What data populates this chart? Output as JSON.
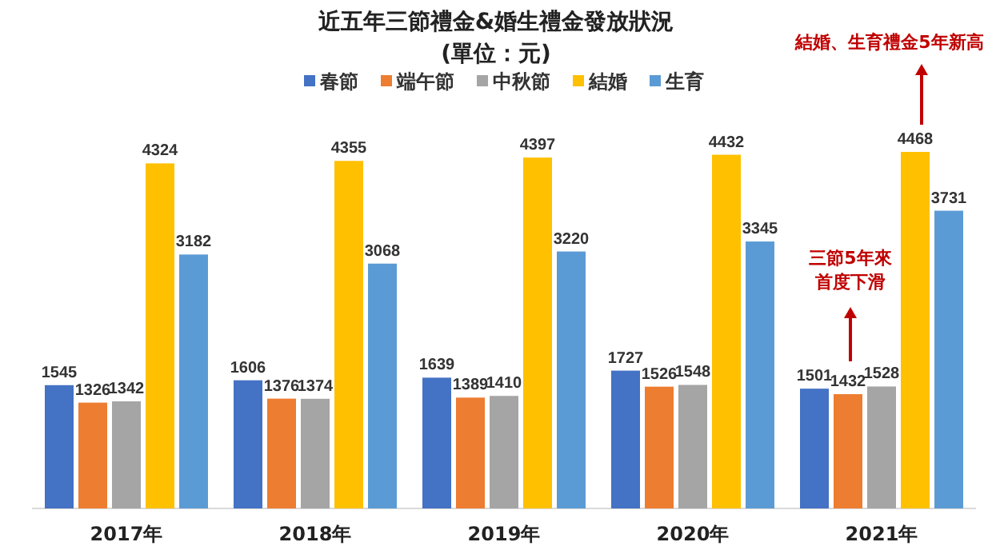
{
  "chart_data": {
    "type": "bar",
    "title": "近五年三節禮金&婚生禮金發放狀況",
    "subtitle": "(單位：元)",
    "categories": [
      "2017年",
      "2018年",
      "2019年",
      "2020年",
      "2021年"
    ],
    "series": [
      {
        "name": "春節",
        "color": "#4472c4",
        "values": [
          1545,
          1606,
          1639,
          1727,
          1501
        ]
      },
      {
        "name": "端午節",
        "color": "#ed7d31",
        "values": [
          1326,
          1376,
          1389,
          1526,
          1432
        ]
      },
      {
        "name": "中秋節",
        "color": "#a5a5a5",
        "values": [
          1342,
          1374,
          1410,
          1548,
          1528
        ]
      },
      {
        "name": "結婚",
        "color": "#ffc000",
        "values": [
          4324,
          4355,
          4397,
          4432,
          4468
        ]
      },
      {
        "name": "生育",
        "color": "#5b9bd5",
        "values": [
          3182,
          3068,
          3220,
          3345,
          3731
        ]
      }
    ],
    "data_labels": true,
    "legend": "top",
    "annotations": [
      "結婚、生育禮金5年新高",
      "三節5年來首度下滑"
    ]
  }
}
